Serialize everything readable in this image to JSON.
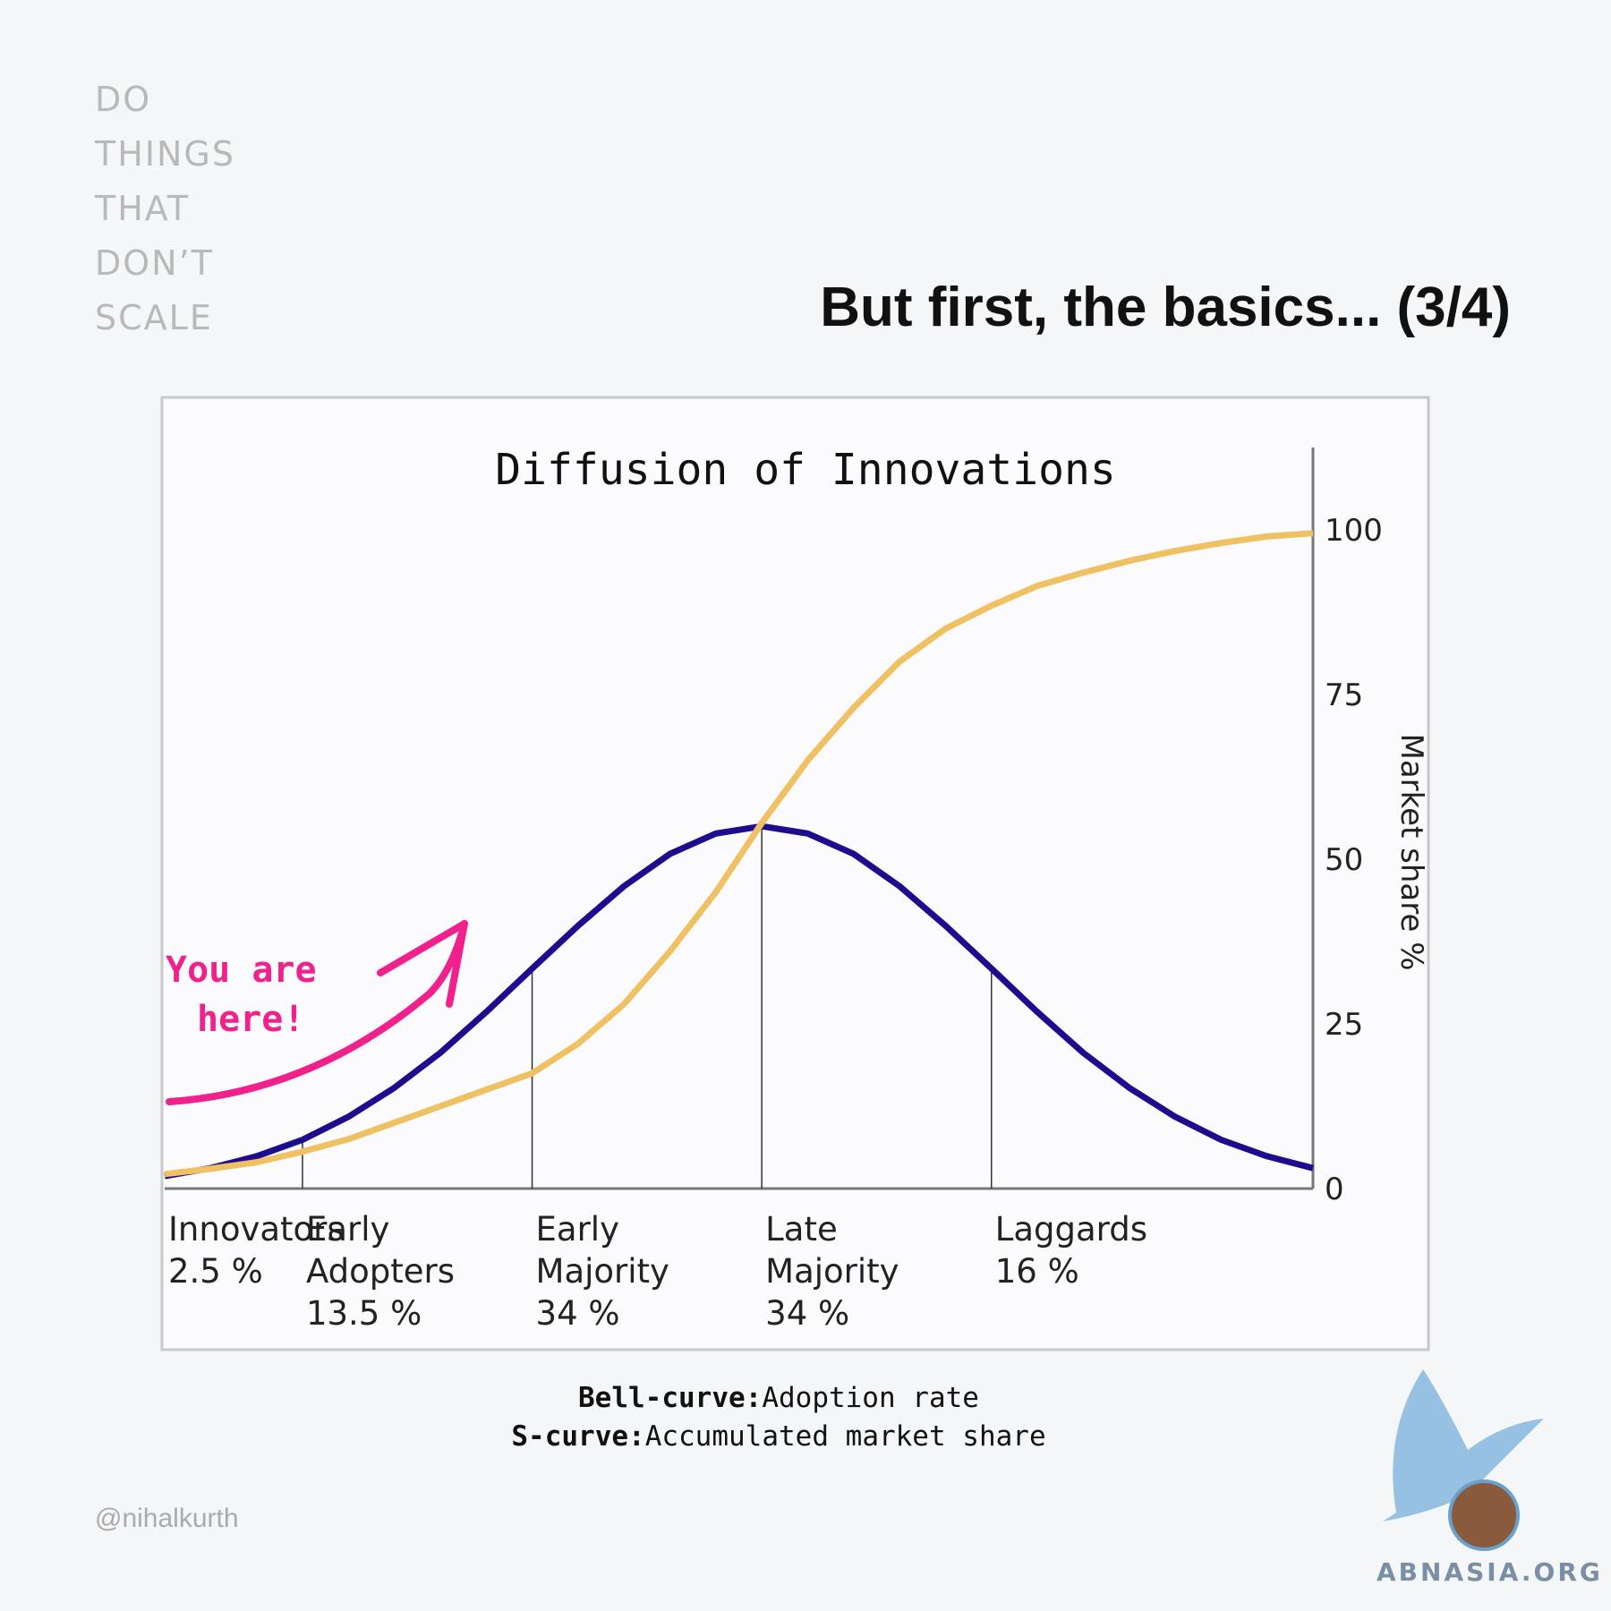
{
  "page": {
    "tagline": [
      "DO",
      "THINGS",
      "THAT",
      "DON’T",
      "SCALE"
    ],
    "heading": "But first, the basics... (3/4)",
    "handle": "@nihalkurth",
    "logo": "ABNASIA.ORG"
  },
  "chart_data": {
    "type": "line",
    "title": "Diffusion of Innovations",
    "y_label": "Market share %",
    "annotation": [
      "You are",
      "here!"
    ],
    "x": [
      -2.6,
      -2.4,
      -2.2,
      -2.0,
      -1.8,
      -1.6,
      -1.4,
      -1.2,
      -1.0,
      -0.8,
      -0.6,
      -0.4,
      -0.2,
      0,
      0.2,
      0.4,
      0.6,
      0.8,
      1.0,
      1.2,
      1.4,
      1.6,
      1.8,
      2.0,
      2.2,
      2.4
    ],
    "xlim": [
      -2.6,
      2.4
    ],
    "ylim": [
      0,
      100
    ],
    "yticks": [
      0,
      25,
      50,
      75,
      100
    ],
    "boundaries": [
      -2,
      -1,
      0,
      1
    ],
    "categories": [
      [
        "Innovators",
        "2.5 %"
      ],
      [
        "Early",
        "Adopters",
        "13.5 %"
      ],
      [
        "Early",
        "Majority",
        "34 %"
      ],
      [
        "Late",
        "Majority",
        "34 %"
      ],
      [
        "Laggards",
        "16 %"
      ]
    ],
    "series": [
      {
        "key": "Bell-curve:",
        "name": "Adoption rate",
        "color": "#1e0c8e",
        "values": [
          1.9,
          3.1,
          4.9,
          7.4,
          10.9,
          15.3,
          20.6,
          26.8,
          33.4,
          39.9,
          45.9,
          50.8,
          53.9,
          55,
          53.9,
          50.8,
          45.9,
          39.9,
          33.4,
          26.8,
          20.6,
          15.3,
          10.9,
          7.4,
          4.9,
          3.1
        ]
      },
      {
        "key": "S-curve:",
        "name": "Accumulated market share",
        "color": "#f0c163",
        "values": [
          2.2,
          3,
          4,
          5.6,
          7.5,
          10,
          12.5,
          15,
          17.5,
          22,
          28,
          36,
          45,
          55.5,
          65,
          73,
          80,
          85,
          88.5,
          91.5,
          93.5,
          95.3,
          96.8,
          98,
          99,
          99.5
        ]
      }
    ]
  }
}
